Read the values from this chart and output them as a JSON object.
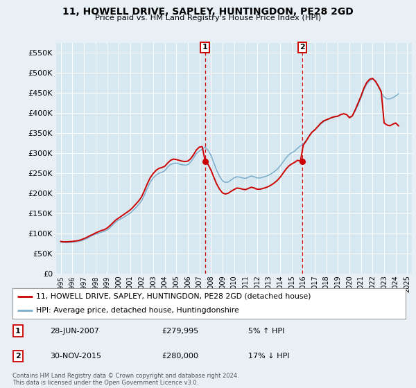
{
  "title": "11, HOWELL DRIVE, SAPLEY, HUNTINGDON, PE28 2GD",
  "subtitle": "Price paid vs. HM Land Registry's House Price Index (HPI)",
  "ylabel_ticks": [
    "£0",
    "£50K",
    "£100K",
    "£150K",
    "£200K",
    "£250K",
    "£300K",
    "£350K",
    "£400K",
    "£450K",
    "£500K",
    "£550K"
  ],
  "ytick_values": [
    0,
    50000,
    100000,
    150000,
    200000,
    250000,
    300000,
    350000,
    400000,
    450000,
    500000,
    550000
  ],
  "ylim": [
    0,
    575000
  ],
  "xlim_start": 1994.6,
  "xlim_end": 2025.4,
  "background_color": "#e8f0f5",
  "plot_bg_color": "#d8e8f0",
  "grid_color": "#ffffff",
  "line1_color": "#cc0000",
  "line2_color": "#7aaccc",
  "marker1_color": "#cc0000",
  "vline_color": "#cc0000",
  "annotation_box_color": "#cc0000",
  "legend_line1": "11, HOWELL DRIVE, SAPLEY, HUNTINGDON, PE28 2GD (detached house)",
  "legend_line2": "HPI: Average price, detached house, Huntingdonshire",
  "sale1_date": "28-JUN-2007",
  "sale1_price": "£279,995",
  "sale1_hpi": "5% ↑ HPI",
  "sale2_date": "30-NOV-2015",
  "sale2_price": "£280,000",
  "sale2_hpi": "17% ↓ HPI",
  "footer": "Contains HM Land Registry data © Crown copyright and database right 2024.\nThis data is licensed under the Open Government Licence v3.0.",
  "sale1_x": 2007.49,
  "sale1_y": 279995,
  "sale2_x": 2015.92,
  "sale2_y": 280000,
  "hpi_data_x": [
    1995.0,
    1995.25,
    1995.5,
    1995.75,
    1996.0,
    1996.25,
    1996.5,
    1996.75,
    1997.0,
    1997.25,
    1997.5,
    1997.75,
    1998.0,
    1998.25,
    1998.5,
    1998.75,
    1999.0,
    1999.25,
    1999.5,
    1999.75,
    2000.0,
    2000.25,
    2000.5,
    2000.75,
    2001.0,
    2001.25,
    2001.5,
    2001.75,
    2002.0,
    2002.25,
    2002.5,
    2002.75,
    2003.0,
    2003.25,
    2003.5,
    2003.75,
    2004.0,
    2004.25,
    2004.5,
    2004.75,
    2005.0,
    2005.25,
    2005.5,
    2005.75,
    2006.0,
    2006.25,
    2006.5,
    2006.75,
    2007.0,
    2007.25,
    2007.5,
    2007.75,
    2008.0,
    2008.25,
    2008.5,
    2008.75,
    2009.0,
    2009.25,
    2009.5,
    2009.75,
    2010.0,
    2010.25,
    2010.5,
    2010.75,
    2011.0,
    2011.25,
    2011.5,
    2011.75,
    2012.0,
    2012.25,
    2012.5,
    2012.75,
    2013.0,
    2013.25,
    2013.5,
    2013.75,
    2014.0,
    2014.25,
    2014.5,
    2014.75,
    2015.0,
    2015.25,
    2015.5,
    2015.75,
    2016.0,
    2016.25,
    2016.5,
    2016.75,
    2017.0,
    2017.25,
    2017.5,
    2017.75,
    2018.0,
    2018.25,
    2018.5,
    2018.75,
    2019.0,
    2019.25,
    2019.5,
    2019.75,
    2020.0,
    2020.25,
    2020.5,
    2020.75,
    2021.0,
    2021.25,
    2021.5,
    2021.75,
    2022.0,
    2022.25,
    2022.5,
    2022.75,
    2023.0,
    2023.25,
    2023.5,
    2023.75,
    2024.0,
    2024.25
  ],
  "hpi_data_y": [
    78000,
    77500,
    77000,
    77500,
    78000,
    79000,
    80000,
    81500,
    84000,
    87000,
    91000,
    95000,
    98000,
    100000,
    103000,
    105000,
    108000,
    114000,
    121000,
    128000,
    133000,
    137000,
    141000,
    146000,
    150000,
    157000,
    164000,
    172000,
    181000,
    196000,
    213000,
    228000,
    238000,
    245000,
    250000,
    252000,
    256000,
    265000,
    272000,
    274000,
    275000,
    273000,
    271000,
    270000,
    271000,
    278000,
    288000,
    299000,
    305000,
    310000,
    315000,
    307000,
    295000,
    276000,
    257000,
    242000,
    231000,
    227000,
    228000,
    233000,
    238000,
    241000,
    240000,
    238000,
    237000,
    240000,
    243000,
    241000,
    238000,
    238000,
    240000,
    242000,
    245000,
    249000,
    254000,
    260000,
    268000,
    278000,
    288000,
    296000,
    301000,
    305000,
    312000,
    318000,
    323000,
    332000,
    343000,
    352000,
    358000,
    365000,
    372000,
    378000,
    382000,
    385000,
    388000,
    390000,
    392000,
    396000,
    398000,
    396000,
    390000,
    392000,
    405000,
    420000,
    438000,
    458000,
    472000,
    480000,
    485000,
    478000,
    465000,
    450000,
    440000,
    435000,
    435000,
    438000,
    442000,
    448000
  ],
  "price_data_x": [
    1995.0,
    1995.25,
    1995.5,
    1995.75,
    1996.0,
    1996.25,
    1996.5,
    1996.75,
    1997.0,
    1997.25,
    1997.5,
    1997.75,
    1998.0,
    1998.25,
    1998.5,
    1998.75,
    1999.0,
    1999.25,
    1999.5,
    1999.75,
    2000.0,
    2000.25,
    2000.5,
    2000.75,
    2001.0,
    2001.25,
    2001.5,
    2001.75,
    2002.0,
    2002.25,
    2002.5,
    2002.75,
    2003.0,
    2003.25,
    2003.5,
    2003.75,
    2004.0,
    2004.25,
    2004.5,
    2004.75,
    2005.0,
    2005.25,
    2005.5,
    2005.75,
    2006.0,
    2006.25,
    2006.5,
    2006.75,
    2007.0,
    2007.25,
    2007.5,
    2007.75,
    2008.0,
    2008.25,
    2008.5,
    2008.75,
    2009.0,
    2009.25,
    2009.5,
    2009.75,
    2010.0,
    2010.25,
    2010.5,
    2010.75,
    2011.0,
    2011.25,
    2011.5,
    2011.75,
    2012.0,
    2012.25,
    2012.5,
    2012.75,
    2013.0,
    2013.25,
    2013.5,
    2013.75,
    2014.0,
    2014.25,
    2014.5,
    2014.75,
    2015.0,
    2015.25,
    2015.5,
    2015.75,
    2016.0,
    2016.25,
    2016.5,
    2016.75,
    2017.0,
    2017.25,
    2017.5,
    2017.75,
    2018.0,
    2018.25,
    2018.5,
    2018.75,
    2019.0,
    2019.25,
    2019.5,
    2019.75,
    2020.0,
    2020.25,
    2020.5,
    2020.75,
    2021.0,
    2021.25,
    2021.5,
    2021.75,
    2022.0,
    2022.25,
    2022.5,
    2022.75,
    2023.0,
    2023.25,
    2023.5,
    2023.75,
    2024.0,
    2024.25
  ],
  "price_data_y": [
    80000,
    79000,
    79000,
    79500,
    80000,
    81000,
    82000,
    84000,
    87000,
    90000,
    94000,
    97000,
    101000,
    104000,
    107000,
    109000,
    113000,
    119000,
    126000,
    133000,
    138000,
    143000,
    148000,
    153000,
    158000,
    165000,
    173000,
    181000,
    191000,
    207000,
    224000,
    239000,
    249000,
    257000,
    262000,
    264000,
    267000,
    275000,
    282000,
    285000,
    284000,
    282000,
    280000,
    279000,
    280000,
    286000,
    296000,
    308000,
    315000,
    316000,
    280000,
    272000,
    258000,
    240000,
    223000,
    210000,
    201000,
    198000,
    200000,
    205000,
    209000,
    213000,
    212000,
    210000,
    209000,
    212000,
    215000,
    213000,
    210000,
    210000,
    212000,
    214000,
    217000,
    221000,
    226000,
    232000,
    240000,
    250000,
    260000,
    268000,
    273000,
    277000,
    282000,
    280000,
    320000,
    330000,
    342000,
    352000,
    358000,
    366000,
    374000,
    380000,
    383000,
    386000,
    389000,
    391000,
    392000,
    396000,
    398000,
    396000,
    388000,
    393000,
    408000,
    425000,
    442000,
    462000,
    476000,
    484000,
    486000,
    479000,
    467000,
    453000,
    375000,
    370000,
    368000,
    372000,
    375000,
    368000
  ]
}
